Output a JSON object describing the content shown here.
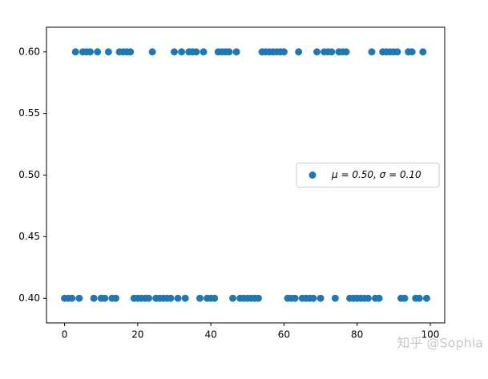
{
  "chart_data": {
    "type": "scatter",
    "x": [
      0,
      1,
      2,
      3,
      4,
      5,
      6,
      7,
      8,
      9,
      10,
      11,
      12,
      13,
      14,
      15,
      16,
      17,
      18,
      19,
      20,
      21,
      22,
      23,
      24,
      25,
      26,
      27,
      28,
      29,
      30,
      31,
      32,
      33,
      34,
      35,
      36,
      37,
      38,
      39,
      40,
      41,
      42,
      43,
      44,
      45,
      46,
      47,
      48,
      49,
      50,
      51,
      52,
      53,
      54,
      55,
      56,
      57,
      58,
      59,
      60,
      61,
      62,
      63,
      64,
      65,
      66,
      67,
      68,
      69,
      70,
      71,
      72,
      73,
      74,
      75,
      76,
      77,
      78,
      79,
      80,
      81,
      82,
      83,
      84,
      85,
      86,
      87,
      88,
      89,
      90,
      91,
      92,
      93,
      94,
      95,
      96,
      97,
      98,
      99
    ],
    "series": [
      {
        "name": "μ = 0.50,  σ = 0.10",
        "color": "#1f77b4",
        "values": [
          0.4,
          0.4,
          0.4,
          0.6,
          0.4,
          0.6,
          0.6,
          0.6,
          0.4,
          0.6,
          0.4,
          0.4,
          0.6,
          0.4,
          0.4,
          0.6,
          0.6,
          0.6,
          0.6,
          0.4,
          0.4,
          0.4,
          0.4,
          0.4,
          0.6,
          0.4,
          0.4,
          0.4,
          0.4,
          0.4,
          0.6,
          0.4,
          0.6,
          0.4,
          0.6,
          0.6,
          0.6,
          0.4,
          0.6,
          0.4,
          0.4,
          0.4,
          0.6,
          0.6,
          0.6,
          0.6,
          0.4,
          0.6,
          0.4,
          0.4,
          0.4,
          0.4,
          0.4,
          0.4,
          0.6,
          0.6,
          0.6,
          0.6,
          0.6,
          0.6,
          0.6,
          0.4,
          0.4,
          0.4,
          0.6,
          0.4,
          0.4,
          0.4,
          0.4,
          0.6,
          0.4,
          0.6,
          0.6,
          0.6,
          0.4,
          0.6,
          0.6,
          0.6,
          0.4,
          0.4,
          0.4,
          0.4,
          0.4,
          0.4,
          0.6,
          0.4,
          0.4,
          0.6,
          0.6,
          0.6,
          0.6,
          0.6,
          0.4,
          0.4,
          0.6,
          0.6,
          0.4,
          0.4,
          0.6,
          0.4
        ]
      }
    ],
    "xlim": [
      -4.95,
      103.95
    ],
    "xticks": [
      0,
      20,
      40,
      60,
      80,
      100
    ],
    "ylim": [
      0.38,
      0.62
    ],
    "yticks": [
      {
        "value": 0.4,
        "label": "0.40"
      },
      {
        "value": 0.45,
        "label": "0.45"
      },
      {
        "value": 0.5,
        "label": "0.50"
      },
      {
        "value": 0.55,
        "label": "0.55"
      },
      {
        "value": 0.6,
        "label": "0.60"
      }
    ],
    "legend": "center right",
    "watermark": "知乎 @Sophia"
  }
}
